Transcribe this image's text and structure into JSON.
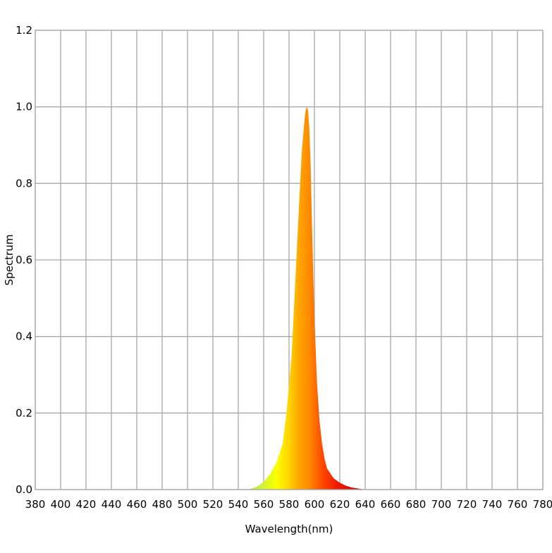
{
  "chart_data": {
    "type": "area",
    "title": "",
    "xlabel": "Wavelength(nm)",
    "ylabel": "Spectrum",
    "xlim": [
      380,
      780
    ],
    "ylim": [
      0,
      1.2
    ],
    "grid": true,
    "legend": "none",
    "x_ticks": [
      380,
      400,
      420,
      440,
      460,
      480,
      500,
      520,
      540,
      560,
      580,
      600,
      620,
      640,
      660,
      680,
      700,
      720,
      740,
      760,
      780
    ],
    "y_ticks": [
      "0.0",
      "0.2",
      "0.4",
      "0.6",
      "0.8",
      "1.0",
      "1.2"
    ],
    "fill_gradient": "spectral (wavelength-colored)",
    "series": [
      {
        "x": [
          548,
          555,
          560,
          565,
          570,
          575,
          578,
          582,
          585,
          588,
          590,
          592,
          593,
          594,
          595,
          596,
          597,
          598,
          600,
          602,
          604,
          606,
          608,
          610,
          615,
          620,
          625,
          630,
          640
        ],
        "values": [
          0.0,
          0.008,
          0.02,
          0.04,
          0.07,
          0.12,
          0.2,
          0.35,
          0.55,
          0.75,
          0.88,
          0.96,
          0.99,
          1.0,
          0.99,
          0.94,
          0.85,
          0.7,
          0.45,
          0.28,
          0.18,
          0.12,
          0.08,
          0.055,
          0.03,
          0.018,
          0.01,
          0.005,
          0.0
        ]
      }
    ]
  }
}
